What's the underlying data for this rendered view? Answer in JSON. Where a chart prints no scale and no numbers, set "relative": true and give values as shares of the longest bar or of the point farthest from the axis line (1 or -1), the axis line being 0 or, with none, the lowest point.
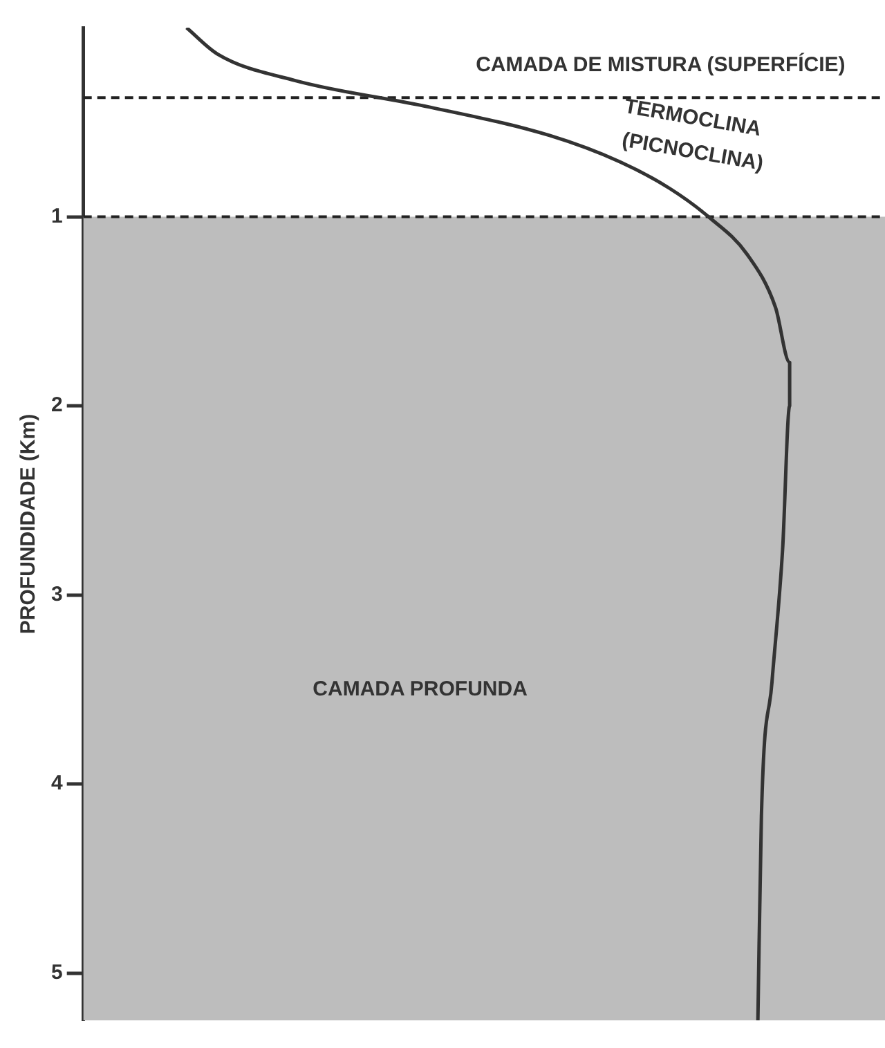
{
  "chart_data": {
    "type": "line",
    "orientation": "horizontal",
    "relative": true,
    "ylabel": "PROFUNDIDADE (Km)",
    "ylim": [
      5.25,
      0
    ],
    "yticks": [
      1,
      2,
      3,
      4,
      5
    ],
    "grid": false,
    "legend": false,
    "x": [
      0,
      0.14,
      0.28,
      0.42,
      0.57,
      0.71,
      0.85,
      1.0,
      1.2,
      1.48,
      1.77,
      2.0,
      2.76,
      3.46,
      4.17,
      5.25
    ],
    "series": [
      {
        "color": "#333333",
        "values": [
          0.146,
          0.19,
          0.3,
          0.49,
          0.66,
          0.76,
          0.83,
          0.885,
          0.94,
          0.98,
          1.0,
          1.0,
          0.99,
          0.975,
          0.96,
          0.955
        ]
      }
    ],
    "ref_lines": [
      {
        "axis": "y",
        "value": 0.37,
        "line_style": "dashed",
        "color": "#222222"
      },
      {
        "axis": "y",
        "value": 1.0,
        "line_style": "dashed",
        "color": "#222222"
      }
    ],
    "bands": [
      {
        "axis": "y",
        "from": 1.0,
        "to": 5.25,
        "label": "CAMADA PROFUNDA",
        "color": "#bdbdbd"
      }
    ],
    "annotations": [
      "CAMADA DE MISTURA (SUPERFÍCIE)",
      "TERMOCLINA (PICNOCLINA)"
    ]
  }
}
